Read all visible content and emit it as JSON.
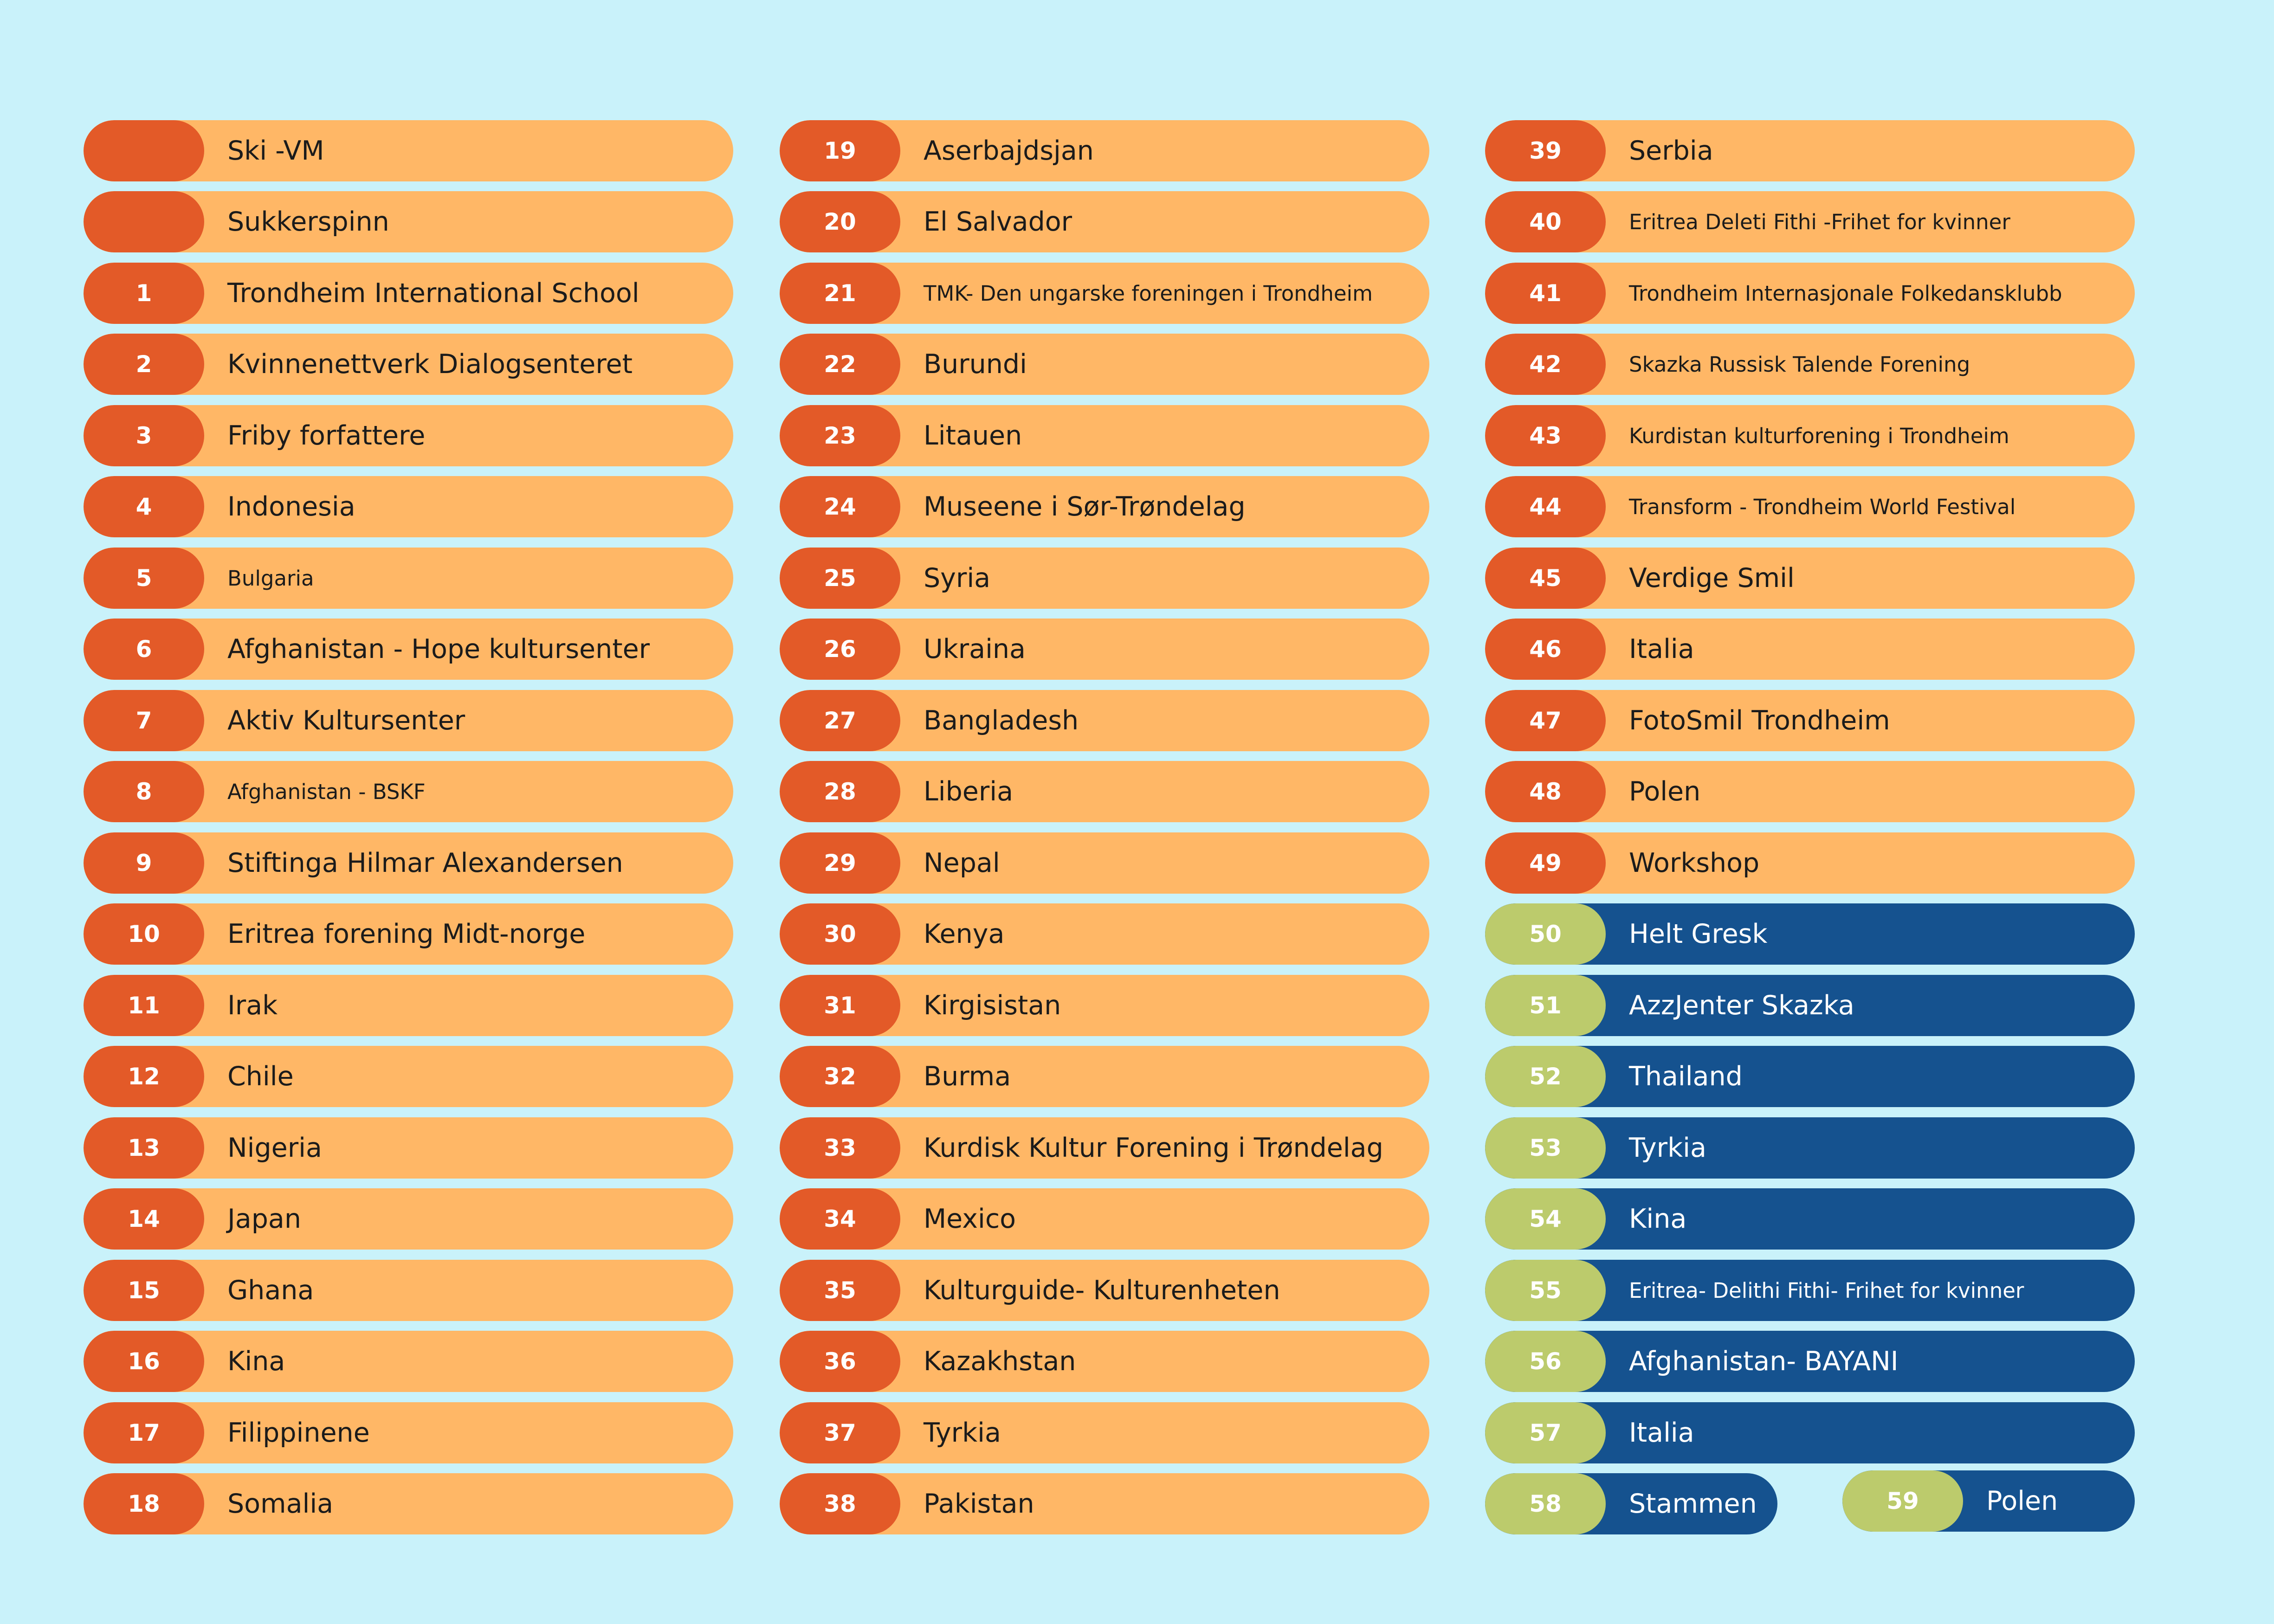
{
  "column_a": [
    {
      "number": "",
      "label": "Ski -VM"
    },
    {
      "number": "",
      "label": "Sukkerspinn"
    },
    {
      "number": "1",
      "label": "Trondheim International School"
    },
    {
      "number": "2",
      "label": "Kvinnenettverk Dialogsenteret"
    },
    {
      "number": "3",
      "label": "Friby forfattere"
    },
    {
      "number": "4",
      "label": "Indonesia"
    },
    {
      "number": "5",
      "label": "Bulgaria"
    },
    {
      "number": "6",
      "label": "Afghanistan - Hope kultursenter"
    },
    {
      "number": "7",
      "label": "Aktiv Kultursenter"
    },
    {
      "number": "8",
      "label": "Afghanistan - BSKF"
    },
    {
      "number": "9",
      "label": "Stiftinga Hilmar Alexandersen"
    },
    {
      "number": "10",
      "label": "Eritrea forening Midt-norge"
    },
    {
      "number": "11",
      "label": "Irak"
    },
    {
      "number": "12",
      "label": "Chile"
    },
    {
      "number": "13",
      "label": "Nigeria"
    },
    {
      "number": "14",
      "label": "Japan"
    },
    {
      "number": "15",
      "label": "Ghana"
    },
    {
      "number": "16",
      "label": "Kina"
    },
    {
      "number": "17",
      "label": "Filippinene"
    },
    {
      "number": "18",
      "label": "Somalia"
    }
  ],
  "column_b": [
    {
      "number": "19",
      "label": "Aserbajdsjan"
    },
    {
      "number": "20",
      "label": "El Salvador"
    },
    {
      "number": "21",
      "label": "TMK- Den ungarske foreningen i Trondheim"
    },
    {
      "number": "22",
      "label": "Burundi"
    },
    {
      "number": "23",
      "label": "Litauen"
    },
    {
      "number": "24",
      "label": "Museene i Sør-Trøndelag"
    },
    {
      "number": "25",
      "label": "Syria"
    },
    {
      "number": "26",
      "label": "Ukraina"
    },
    {
      "number": "27",
      "label": "Bangladesh"
    },
    {
      "number": "28",
      "label": "Liberia"
    },
    {
      "number": "29",
      "label": "Nepal"
    },
    {
      "number": "30",
      "label": "Kenya"
    },
    {
      "number": "31",
      "label": "Kirgisistan"
    },
    {
      "number": "32",
      "label": "Burma"
    },
    {
      "number": "33",
      "label": "Kurdisk Kultur Forening i Trøndelag"
    },
    {
      "number": "34",
      "label": "Mexico"
    },
    {
      "number": "35",
      "label": "Kulturguide- Kulturenheten"
    },
    {
      "number": "36",
      "label": "Kazakhstan"
    },
    {
      "number": "37",
      "label": "Tyrkia"
    },
    {
      "number": "38",
      "label": "Pakistan"
    }
  ],
  "column_c": [
    {
      "number": "39",
      "label": "Serbia"
    },
    {
      "number": "40",
      "label": "Eritrea Deleti Fithi -Frihet for kvinner"
    },
    {
      "number": "41",
      "label": "Trondheim Internasjonale Folkedansklubb"
    },
    {
      "number": "42",
      "label": "Skazka Russisk Talende Forening"
    },
    {
      "number": "43",
      "label": "Kurdistan kulturforening i Trondheim"
    },
    {
      "number": "44",
      "label": "Transform - Trondheim World Festival"
    },
    {
      "number": "45",
      "label": "Verdige Smil"
    },
    {
      "number": "46",
      "label": "Italia"
    },
    {
      "number": "47",
      "label": "FotoSmil Trondheim"
    },
    {
      "number": "48",
      "label": "Polen"
    },
    {
      "number": "49",
      "label": "Workshop"
    },
    {
      "number": "50",
      "label": "Helt Gresk"
    },
    {
      "number": "51",
      "label": "AzzJenter Skazka"
    },
    {
      "number": "52",
      "label": "Thailand"
    },
    {
      "number": "53",
      "label": "Tyrkia"
    },
    {
      "number": "54",
      "label": "Kina"
    },
    {
      "number": "55",
      "label": "Eritrea- Delithi Fithi- Frihet for kvinner"
    },
    {
      "number": "56",
      "label": "Afghanistan- BAYANI"
    },
    {
      "number": "57",
      "label": "Italia"
    },
    {
      "number": "58",
      "label": "Stammen"
    },
    {
      "number": "59",
      "label": "Polen"
    }
  ],
  "colors": {
    "background": "#c9f2fa",
    "pill_orange": "#ffb766",
    "badge_orange": "#e35a28",
    "pill_blue": "#15528f",
    "badge_green": "#bccb6c"
  }
}
